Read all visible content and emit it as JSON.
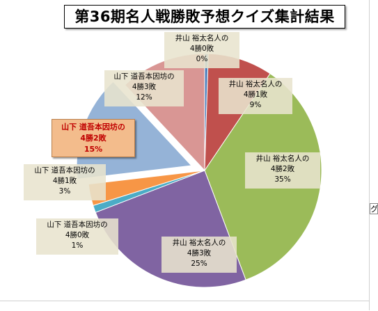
{
  "chart_data": {
    "type": "pie",
    "title": "第36期名人戦勝敗予想クイズ集計結果",
    "slices": [
      {
        "line1": "井山 裕太名人の",
        "line2": "4勝0敗",
        "percent_label": "0%",
        "value": 0.5,
        "color": "#4f81bd"
      },
      {
        "line1": "井山 裕太名人の",
        "line2": "4勝1敗",
        "percent_label": "9%",
        "value": 9,
        "color": "#c0504d"
      },
      {
        "line1": "井山 裕太名人の",
        "line2": "4勝2敗",
        "percent_label": "35%",
        "value": 35,
        "color": "#9bbb59"
      },
      {
        "line1": "井山 裕太名人の",
        "line2": "4勝3敗",
        "percent_label": "25%",
        "value": 25,
        "color": "#8064a2"
      },
      {
        "line1": "山下 道吾本因坊の",
        "line2": "4勝0敗",
        "percent_label": "1%",
        "value": 1,
        "color": "#4bacc6"
      },
      {
        "line1": "山下 道吾本因坊の",
        "line2": "4勝1敗",
        "percent_label": "3%",
        "value": 3,
        "color": "#f79646"
      },
      {
        "line1": "山下 道吾本因坊の",
        "line2": "4勝2敗",
        "percent_label": "15%",
        "value": 15,
        "color": "#95b3d7",
        "exploded": true,
        "highlight": true
      },
      {
        "line1": "山下 道吾本因坊の",
        "line2": "4勝3敗",
        "percent_label": "12%",
        "value": 12,
        "color": "#d99694"
      }
    ],
    "legend": "none"
  },
  "side_glyph": "グ"
}
